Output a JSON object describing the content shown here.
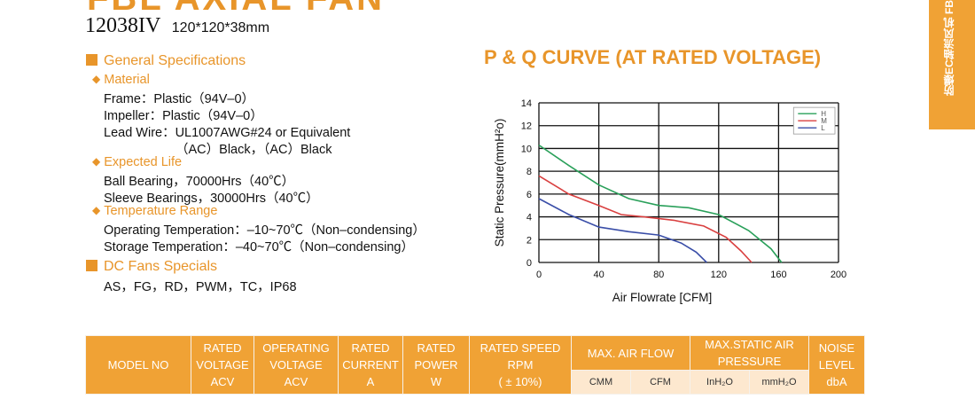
{
  "header": {
    "title": "FBL AXIAL FAN",
    "model": "12038",
    "model_suffix": "IV",
    "size": "120*120*38mm"
  },
  "side_tab": {
    "label": "防爆EC轴流风机 FB"
  },
  "specs": {
    "general_heading": "General Specifications",
    "material_heading": "Material",
    "material_lines": [
      "Frame：Plastic（94V–0）",
      "Impeller：Plastic（94V–0）",
      "Lead Wire：UL1007AWG#24 or Equivalent",
      "（AC）Black，（AC）Black"
    ],
    "life_heading": "Expected Life",
    "life_lines": [
      "Ball Bearing，70000Hrs（40℃）",
      "Sleeve Bearings，30000Hrs（40℃）"
    ],
    "temp_heading": "Temperature Range",
    "temp_lines": [
      "Operating Temperation：–10~70℃（Non–condensing）",
      "Storage Temperation：–40~70℃（Non–condensing）"
    ],
    "dc_heading": "DC Fans Specials",
    "dc_line": "AS，FG，RD，PWM，TC，IP68"
  },
  "chart_title": "P & Q CURVE (AT RATED VOLTAGE)",
  "chart_data": {
    "type": "line",
    "xlabel": "Air  Flowrate  [CFM]",
    "ylabel": "Static Pressure(mmH²o)",
    "xlim": [
      0,
      200
    ],
    "ylim": [
      0,
      14
    ],
    "x_ticks": [
      0,
      40,
      80,
      120,
      160,
      200
    ],
    "y_ticks": [
      0,
      2,
      4,
      6,
      8,
      10,
      12,
      14
    ],
    "grid": true,
    "legend_position": "top-right",
    "series": [
      {
        "name": "H",
        "color": "#2aa05a",
        "points": [
          [
            0,
            10.3
          ],
          [
            20,
            8.5
          ],
          [
            40,
            6.8
          ],
          [
            60,
            5.6
          ],
          [
            80,
            5.0
          ],
          [
            100,
            4.8
          ],
          [
            120,
            4.2
          ],
          [
            140,
            2.8
          ],
          [
            155,
            1.2
          ],
          [
            162,
            0
          ]
        ]
      },
      {
        "name": "M",
        "color": "#d94040",
        "points": [
          [
            0,
            7.6
          ],
          [
            20,
            6.0
          ],
          [
            40,
            5.0
          ],
          [
            55,
            4.2
          ],
          [
            70,
            4.0
          ],
          [
            90,
            3.7
          ],
          [
            110,
            3.2
          ],
          [
            125,
            2.2
          ],
          [
            135,
            1.0
          ],
          [
            142,
            0
          ]
        ]
      },
      {
        "name": "L",
        "color": "#3a4ea8",
        "points": [
          [
            0,
            5.6
          ],
          [
            20,
            4.2
          ],
          [
            40,
            3.1
          ],
          [
            60,
            2.7
          ],
          [
            80,
            2.4
          ],
          [
            95,
            1.7
          ],
          [
            105,
            0.9
          ],
          [
            112,
            0
          ]
        ]
      }
    ]
  },
  "table": {
    "headers": [
      "MODEL NO",
      "RATED\nVOLTAGE\nACV",
      "OPERATING\nVOLTAGE\nACV",
      "RATED\nCURRENT\nA",
      "RATED\nPOWER\nW",
      "RATED SPEED\nRPM\n( ± 10%)",
      "MAX. AIR FLOW",
      "MAX.STATIC AIR\nPRESSURE",
      "NOISE\nLEVEL\ndbA"
    ],
    "subheaders": [
      "CMM",
      "CFM",
      "InH₂O",
      "mmH₂O"
    ]
  }
}
